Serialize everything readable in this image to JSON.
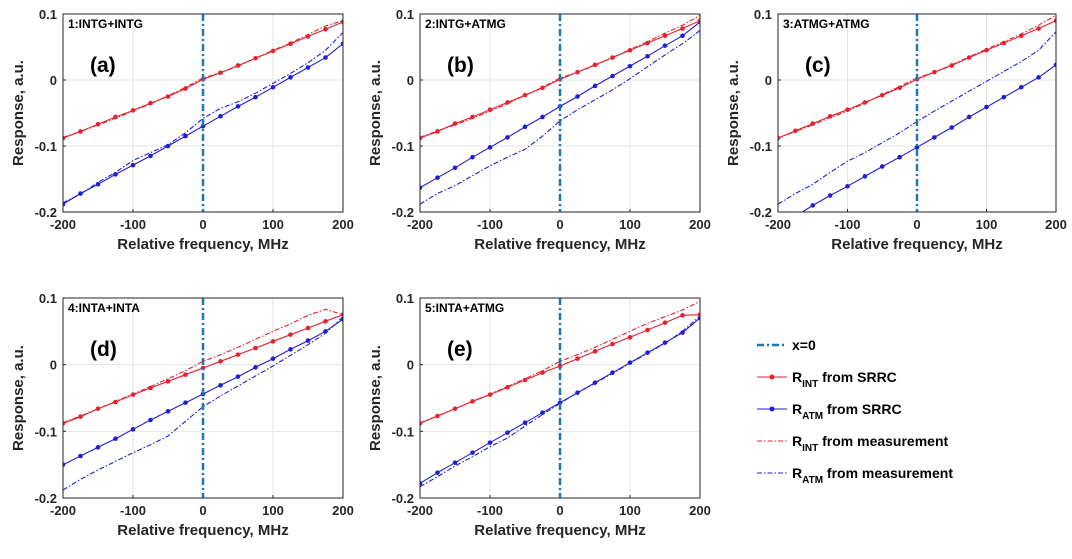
{
  "chart_data": {
    "type": "line",
    "xlabel": "Relative frequency, MHz",
    "ylabel": "Response, a.u.",
    "xlim": [
      -200,
      200
    ],
    "ylim": [
      -0.2,
      0.1
    ],
    "xticks": [
      "-200",
      "-100",
      "0",
      "100",
      "200"
    ],
    "yticks": [
      "-0.2",
      "-0.1",
      "0",
      "0.1"
    ],
    "grid": true,
    "vline_x": 0,
    "colors": {
      "red": "#e8212e",
      "blue": "#1f1fd6",
      "vline": "#1f77b4"
    },
    "legend": {
      "placement": "right",
      "entries": [
        {
          "key": "vline",
          "main": "x=0",
          "sub": "",
          "rest": ""
        },
        {
          "key": "red_srrc",
          "main": "R",
          "sub": "INT",
          "rest": " from SRRC"
        },
        {
          "key": "blue_srrc",
          "main": "R",
          "sub": "ATM",
          "rest": " from SRRC"
        },
        {
          "key": "red_meas",
          "main": "R",
          "sub": "INT",
          "rest": " from measurement"
        },
        {
          "key": "blue_meas",
          "main": "R",
          "sub": "ATM",
          "rest": " from measurement"
        }
      ]
    },
    "panels": [
      {
        "letter": "(a)",
        "label": "1:INTG+INTG",
        "x": [
          -200,
          -175,
          -150,
          -125,
          -100,
          -75,
          -50,
          -25,
          0,
          25,
          50,
          75,
          100,
          125,
          150,
          175,
          200
        ],
        "red_srrc": [
          -0.088,
          -0.078,
          -0.067,
          -0.056,
          -0.046,
          -0.035,
          -0.025,
          -0.013,
          0.001,
          0.011,
          0.022,
          0.033,
          0.044,
          0.055,
          0.066,
          0.077,
          0.088
        ],
        "blue_srrc": [
          -0.188,
          -0.172,
          -0.158,
          -0.143,
          -0.129,
          -0.115,
          -0.1,
          -0.085,
          -0.07,
          -0.055,
          -0.04,
          -0.026,
          -0.011,
          0.004,
          0.019,
          0.034,
          0.055
        ],
        "red_meas": [
          -0.087,
          -0.078,
          -0.068,
          -0.058,
          -0.047,
          -0.036,
          -0.024,
          -0.011,
          0.003,
          0.011,
          0.021,
          0.033,
          0.045,
          0.056,
          0.069,
          0.082,
          0.09
        ],
        "blue_meas": [
          -0.186,
          -0.173,
          -0.155,
          -0.14,
          -0.122,
          -0.11,
          -0.098,
          -0.08,
          -0.058,
          -0.043,
          -0.033,
          -0.02,
          -0.005,
          0.01,
          0.026,
          0.045,
          0.072
        ]
      },
      {
        "letter": "(b)",
        "label": "2:INTG+ATMG",
        "x": [
          -200,
          -175,
          -150,
          -125,
          -100,
          -75,
          -50,
          -25,
          0,
          25,
          50,
          75,
          100,
          125,
          150,
          175,
          200
        ],
        "red_srrc": [
          -0.088,
          -0.078,
          -0.066,
          -0.056,
          -0.045,
          -0.034,
          -0.023,
          -0.012,
          0.001,
          0.012,
          0.023,
          0.034,
          0.045,
          0.056,
          0.067,
          0.078,
          0.09
        ],
        "blue_srrc": [
          -0.163,
          -0.148,
          -0.133,
          -0.117,
          -0.102,
          -0.087,
          -0.071,
          -0.056,
          -0.04,
          -0.025,
          -0.009,
          0.006,
          0.021,
          0.036,
          0.052,
          0.067,
          0.088
        ],
        "red_meas": [
          -0.087,
          -0.077,
          -0.068,
          -0.058,
          -0.047,
          -0.036,
          -0.023,
          -0.011,
          0.003,
          0.012,
          0.022,
          0.034,
          0.046,
          0.058,
          0.071,
          0.083,
          0.098
        ],
        "blue_meas": [
          -0.188,
          -0.172,
          -0.16,
          -0.145,
          -0.13,
          -0.117,
          -0.105,
          -0.085,
          -0.062,
          -0.045,
          -0.03,
          -0.015,
          0.002,
          0.02,
          0.038,
          0.055,
          0.075
        ]
      },
      {
        "letter": "(c)",
        "label": "3:ATMG+ATMG",
        "x": [
          -200,
          -175,
          -150,
          -125,
          -100,
          -75,
          -50,
          -25,
          0,
          25,
          50,
          75,
          100,
          125,
          150,
          175,
          200
        ],
        "red_srrc": [
          -0.088,
          -0.077,
          -0.066,
          -0.055,
          -0.045,
          -0.034,
          -0.023,
          -0.012,
          0.001,
          0.012,
          0.022,
          0.034,
          0.045,
          0.056,
          0.067,
          0.078,
          0.09
        ],
        "blue_srrc": [
          -0.225,
          -0.207,
          -0.19,
          -0.175,
          -0.161,
          -0.146,
          -0.131,
          -0.117,
          -0.102,
          -0.087,
          -0.072,
          -0.056,
          -0.041,
          -0.026,
          -0.011,
          0.004,
          0.023
        ],
        "red_meas": [
          -0.088,
          -0.078,
          -0.068,
          -0.057,
          -0.047,
          -0.035,
          -0.022,
          -0.01,
          0.003,
          0.012,
          0.023,
          0.035,
          0.047,
          0.058,
          0.07,
          0.083,
          0.098
        ],
        "blue_meas": [
          -0.188,
          -0.172,
          -0.158,
          -0.14,
          -0.123,
          -0.11,
          -0.095,
          -0.08,
          -0.063,
          -0.047,
          -0.032,
          -0.017,
          -0.002,
          0.013,
          0.028,
          0.045,
          0.073
        ]
      },
      {
        "letter": "(d)",
        "label": "4:INTA+INTA",
        "x": [
          -200,
          -175,
          -150,
          -125,
          -100,
          -75,
          -50,
          -25,
          0,
          25,
          50,
          75,
          100,
          125,
          150,
          175,
          200
        ],
        "red_srrc": [
          -0.088,
          -0.078,
          -0.066,
          -0.056,
          -0.045,
          -0.035,
          -0.025,
          -0.015,
          -0.005,
          0.005,
          0.015,
          0.025,
          0.035,
          0.045,
          0.055,
          0.065,
          0.075
        ],
        "blue_srrc": [
          -0.15,
          -0.137,
          -0.124,
          -0.111,
          -0.097,
          -0.083,
          -0.07,
          -0.057,
          -0.044,
          -0.031,
          -0.018,
          -0.004,
          0.009,
          0.023,
          0.036,
          0.05,
          0.068
        ],
        "red_meas": [
          -0.087,
          -0.077,
          -0.066,
          -0.055,
          -0.044,
          -0.033,
          -0.021,
          -0.009,
          0.005,
          0.015,
          0.026,
          0.038,
          0.05,
          0.061,
          0.074,
          0.083,
          0.075
        ],
        "blue_meas": [
          -0.188,
          -0.172,
          -0.158,
          -0.145,
          -0.132,
          -0.12,
          -0.107,
          -0.085,
          -0.063,
          -0.047,
          -0.032,
          -0.017,
          -0.002,
          0.014,
          0.03,
          0.047,
          0.072
        ]
      },
      {
        "letter": "(e)",
        "label": "5:INTA+ATMG",
        "x": [
          -200,
          -175,
          -150,
          -125,
          -100,
          -75,
          -50,
          -25,
          0,
          25,
          50,
          75,
          100,
          125,
          150,
          175,
          200
        ],
        "red_srrc": [
          -0.088,
          -0.077,
          -0.066,
          -0.055,
          -0.045,
          -0.034,
          -0.023,
          -0.012,
          -0.002,
          0.009,
          0.02,
          0.031,
          0.041,
          0.052,
          0.063,
          0.074,
          0.075
        ],
        "blue_srrc": [
          -0.178,
          -0.162,
          -0.147,
          -0.132,
          -0.117,
          -0.102,
          -0.087,
          -0.072,
          -0.057,
          -0.042,
          -0.027,
          -0.012,
          0.003,
          0.018,
          0.033,
          0.048,
          0.07
        ],
        "red_meas": [
          -0.087,
          -0.077,
          -0.066,
          -0.055,
          -0.044,
          -0.033,
          -0.021,
          -0.009,
          0.005,
          0.015,
          0.026,
          0.038,
          0.05,
          0.062,
          0.072,
          0.082,
          0.095
        ],
        "blue_meas": [
          -0.183,
          -0.168,
          -0.152,
          -0.138,
          -0.123,
          -0.11,
          -0.092,
          -0.075,
          -0.058,
          -0.042,
          -0.028,
          -0.013,
          0.002,
          0.017,
          0.032,
          0.05,
          0.073
        ]
      }
    ]
  }
}
